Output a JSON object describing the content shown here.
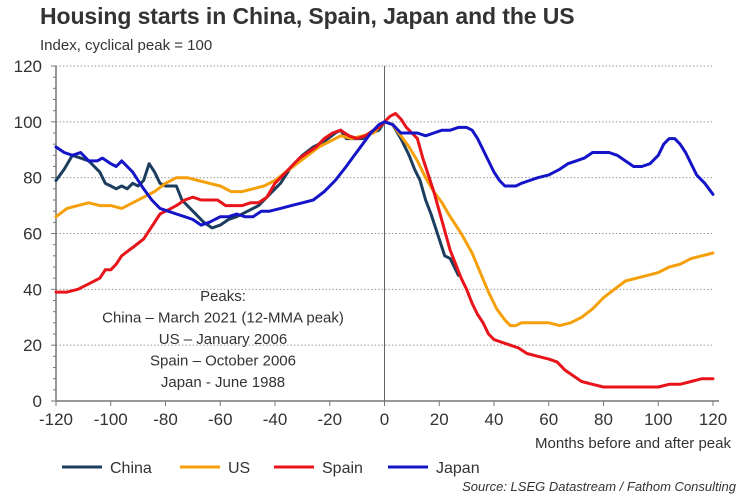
{
  "header": {
    "title": "Housing starts in China, Spain, Japan and the US",
    "subtitle": "Index, cyclical peak = 100"
  },
  "footer": {
    "source": "Source: LSEG Datastream / Fathom Consulting"
  },
  "chart_data": {
    "type": "line",
    "title": "Housing starts in China, Spain, Japan and the US",
    "subtitle": "Index, cyclical peak = 100",
    "xlabel": "Months before and after peak",
    "ylabel": "",
    "xlim": [
      -120,
      120
    ],
    "ylim": [
      0,
      120
    ],
    "x_ticks": [
      -120,
      -100,
      -80,
      -60,
      -40,
      -20,
      0,
      20,
      40,
      60,
      80,
      100,
      120
    ],
    "x_tick_labels": [
      "-120",
      "-100",
      "-80",
      "-60",
      "-40",
      "-20",
      "0",
      "20",
      "40",
      "60",
      "80",
      "100",
      "120"
    ],
    "y_ticks": [
      0,
      20,
      40,
      60,
      80,
      100,
      120
    ],
    "y_tick_labels": [
      "0",
      "20",
      "40",
      "60",
      "80",
      "100",
      "120"
    ],
    "grid": "horizontal dotted",
    "reference_line_x": 0,
    "legend": {
      "placement": "bottom",
      "entries": [
        "China",
        "US",
        "Spain",
        "Japan"
      ]
    },
    "annotation": {
      "lines": [
        "Peaks:",
        "China – March 2021 (12-MMA peak)",
        "US – January 2006",
        "Spain – October 2006",
        "Japan - June 1988"
      ]
    },
    "series": [
      {
        "name": "China",
        "color": "#1b3d5e",
        "points": [
          [
            -120,
            79
          ],
          [
            -117,
            83
          ],
          [
            -114,
            88
          ],
          [
            -111,
            87
          ],
          [
            -108,
            86
          ],
          [
            -106,
            84
          ],
          [
            -104,
            82
          ],
          [
            -102,
            78
          ],
          [
            -100,
            77
          ],
          [
            -98,
            76
          ],
          [
            -96,
            77
          ],
          [
            -94,
            76
          ],
          [
            -92,
            78
          ],
          [
            -90,
            77
          ],
          [
            -88,
            79
          ],
          [
            -86,
            85
          ],
          [
            -84,
            82
          ],
          [
            -82,
            78
          ],
          [
            -80,
            77
          ],
          [
            -78,
            77
          ],
          [
            -76,
            77
          ],
          [
            -74,
            72
          ],
          [
            -70,
            68
          ],
          [
            -66,
            64
          ],
          [
            -63,
            62
          ],
          [
            -60,
            63
          ],
          [
            -57,
            65
          ],
          [
            -54,
            66
          ],
          [
            -50,
            68
          ],
          [
            -46,
            70
          ],
          [
            -42,
            74
          ],
          [
            -38,
            78
          ],
          [
            -34,
            84
          ],
          [
            -30,
            88
          ],
          [
            -26,
            91
          ],
          [
            -22,
            93
          ],
          [
            -18,
            96
          ],
          [
            -16,
            97
          ],
          [
            -14,
            94
          ],
          [
            -11,
            94
          ],
          [
            -8,
            94
          ],
          [
            -5,
            96
          ],
          [
            -2,
            97
          ],
          [
            0,
            100
          ],
          [
            3,
            99
          ],
          [
            6,
            94
          ],
          [
            9,
            88
          ],
          [
            11,
            83
          ],
          [
            13,
            79
          ],
          [
            15,
            72
          ],
          [
            17,
            67
          ],
          [
            19,
            61
          ],
          [
            21,
            55
          ],
          [
            22,
            52
          ],
          [
            24,
            51
          ],
          [
            26,
            47
          ],
          [
            27,
            45
          ]
        ]
      },
      {
        "name": "US",
        "color": "#f5a00a",
        "points": [
          [
            -120,
            66
          ],
          [
            -116,
            69
          ],
          [
            -112,
            70
          ],
          [
            -108,
            71
          ],
          [
            -104,
            70
          ],
          [
            -100,
            70
          ],
          [
            -96,
            69
          ],
          [
            -92,
            71
          ],
          [
            -88,
            73
          ],
          [
            -84,
            75
          ],
          [
            -80,
            78
          ],
          [
            -76,
            80
          ],
          [
            -72,
            80
          ],
          [
            -68,
            79
          ],
          [
            -64,
            78
          ],
          [
            -60,
            77
          ],
          [
            -56,
            75
          ],
          [
            -52,
            75
          ],
          [
            -48,
            76
          ],
          [
            -44,
            77
          ],
          [
            -40,
            79
          ],
          [
            -36,
            82
          ],
          [
            -32,
            85
          ],
          [
            -28,
            88
          ],
          [
            -24,
            91
          ],
          [
            -20,
            93
          ],
          [
            -16,
            95
          ],
          [
            -12,
            94
          ],
          [
            -8,
            95
          ],
          [
            -4,
            96
          ],
          [
            0,
            100
          ],
          [
            3,
            99
          ],
          [
            6,
            95
          ],
          [
            9,
            91
          ],
          [
            12,
            86
          ],
          [
            15,
            80
          ],
          [
            18,
            75
          ],
          [
            21,
            71
          ],
          [
            24,
            66
          ],
          [
            28,
            60
          ],
          [
            32,
            53
          ],
          [
            35,
            46
          ],
          [
            38,
            39
          ],
          [
            41,
            33
          ],
          [
            44,
            29
          ],
          [
            46,
            27
          ],
          [
            48,
            27
          ],
          [
            50,
            28
          ],
          [
            53,
            28
          ],
          [
            56,
            28
          ],
          [
            60,
            28
          ],
          [
            64,
            27
          ],
          [
            68,
            28
          ],
          [
            72,
            30
          ],
          [
            76,
            33
          ],
          [
            80,
            37
          ],
          [
            84,
            40
          ],
          [
            88,
            43
          ],
          [
            92,
            44
          ],
          [
            96,
            45
          ],
          [
            100,
            46
          ],
          [
            104,
            48
          ],
          [
            108,
            49
          ],
          [
            112,
            51
          ],
          [
            116,
            52
          ],
          [
            120,
            53
          ]
        ]
      },
      {
        "name": "Spain",
        "color": "#e8141b",
        "points": [
          [
            -120,
            39
          ],
          [
            -116,
            39
          ],
          [
            -112,
            40
          ],
          [
            -108,
            42
          ],
          [
            -104,
            44
          ],
          [
            -102,
            47
          ],
          [
            -100,
            47
          ],
          [
            -98,
            49
          ],
          [
            -96,
            52
          ],
          [
            -92,
            55
          ],
          [
            -88,
            58
          ],
          [
            -86,
            61
          ],
          [
            -84,
            64
          ],
          [
            -82,
            67
          ],
          [
            -80,
            68
          ],
          [
            -78,
            69
          ],
          [
            -76,
            70
          ],
          [
            -73,
            72
          ],
          [
            -70,
            73
          ],
          [
            -67,
            72
          ],
          [
            -64,
            72
          ],
          [
            -61,
            72
          ],
          [
            -58,
            70
          ],
          [
            -55,
            70
          ],
          [
            -52,
            70
          ],
          [
            -49,
            71
          ],
          [
            -46,
            71
          ],
          [
            -43,
            73
          ],
          [
            -40,
            78
          ],
          [
            -37,
            81
          ],
          [
            -34,
            84
          ],
          [
            -31,
            87
          ],
          [
            -28,
            89
          ],
          [
            -25,
            91
          ],
          [
            -22,
            94
          ],
          [
            -19,
            96
          ],
          [
            -16,
            97
          ],
          [
            -13,
            95
          ],
          [
            -10,
            94
          ],
          [
            -7,
            95
          ],
          [
            -4,
            97
          ],
          [
            -2,
            98
          ],
          [
            0,
            100
          ],
          [
            2,
            102
          ],
          [
            4,
            103
          ],
          [
            6,
            101
          ],
          [
            8,
            98
          ],
          [
            10,
            96
          ],
          [
            12,
            94
          ],
          [
            14,
            87
          ],
          [
            16,
            81
          ],
          [
            18,
            75
          ],
          [
            20,
            68
          ],
          [
            22,
            61
          ],
          [
            24,
            54
          ],
          [
            26,
            49
          ],
          [
            28,
            44
          ],
          [
            30,
            40
          ],
          [
            32,
            35
          ],
          [
            34,
            31
          ],
          [
            36,
            28
          ],
          [
            38,
            24
          ],
          [
            40,
            22
          ],
          [
            43,
            21
          ],
          [
            46,
            20
          ],
          [
            49,
            19
          ],
          [
            52,
            17
          ],
          [
            56,
            16
          ],
          [
            60,
            15
          ],
          [
            63,
            14
          ],
          [
            66,
            11
          ],
          [
            69,
            9
          ],
          [
            72,
            7
          ],
          [
            76,
            6
          ],
          [
            80,
            5
          ],
          [
            84,
            5
          ],
          [
            88,
            5
          ],
          [
            92,
            5
          ],
          [
            96,
            5
          ],
          [
            100,
            5
          ],
          [
            104,
            6
          ],
          [
            108,
            6
          ],
          [
            112,
            7
          ],
          [
            116,
            8
          ],
          [
            120,
            8
          ]
        ]
      },
      {
        "name": "Japan",
        "color": "#1414c8",
        "points": [
          [
            -120,
            91
          ],
          [
            -117,
            89
          ],
          [
            -114,
            88
          ],
          [
            -111,
            89
          ],
          [
            -108,
            86
          ],
          [
            -105,
            86
          ],
          [
            -103,
            87
          ],
          [
            -100,
            85
          ],
          [
            -98,
            84
          ],
          [
            -96,
            86
          ],
          [
            -94,
            84
          ],
          [
            -92,
            82
          ],
          [
            -90,
            79
          ],
          [
            -88,
            76
          ],
          [
            -85,
            72
          ],
          [
            -82,
            69
          ],
          [
            -79,
            68
          ],
          [
            -76,
            67
          ],
          [
            -73,
            66
          ],
          [
            -70,
            65
          ],
          [
            -67,
            63
          ],
          [
            -64,
            64
          ],
          [
            -60,
            66
          ],
          [
            -57,
            66
          ],
          [
            -54,
            67
          ],
          [
            -51,
            66
          ],
          [
            -48,
            66
          ],
          [
            -45,
            68
          ],
          [
            -42,
            68
          ],
          [
            -38,
            69
          ],
          [
            -34,
            70
          ],
          [
            -30,
            71
          ],
          [
            -26,
            72
          ],
          [
            -22,
            75
          ],
          [
            -18,
            79
          ],
          [
            -14,
            84
          ],
          [
            -11,
            88
          ],
          [
            -8,
            92
          ],
          [
            -5,
            96
          ],
          [
            -2,
            99
          ],
          [
            0,
            100
          ],
          [
            3,
            99
          ],
          [
            6,
            96
          ],
          [
            9,
            96
          ],
          [
            12,
            96
          ],
          [
            15,
            95
          ],
          [
            18,
            96
          ],
          [
            21,
            97
          ],
          [
            24,
            97
          ],
          [
            27,
            98
          ],
          [
            30,
            98
          ],
          [
            32,
            97
          ],
          [
            34,
            94
          ],
          [
            36,
            90
          ],
          [
            38,
            86
          ],
          [
            40,
            82
          ],
          [
            42,
            79
          ],
          [
            44,
            77
          ],
          [
            46,
            77
          ],
          [
            48,
            77
          ],
          [
            50,
            78
          ],
          [
            53,
            79
          ],
          [
            56,
            80
          ],
          [
            60,
            81
          ],
          [
            64,
            83
          ],
          [
            67,
            85
          ],
          [
            70,
            86
          ],
          [
            73,
            87
          ],
          [
            76,
            89
          ],
          [
            79,
            89
          ],
          [
            82,
            89
          ],
          [
            85,
            88
          ],
          [
            88,
            86
          ],
          [
            91,
            84
          ],
          [
            94,
            84
          ],
          [
            97,
            85
          ],
          [
            100,
            88
          ],
          [
            102,
            92
          ],
          [
            104,
            94
          ],
          [
            106,
            94
          ],
          [
            108,
            92
          ],
          [
            110,
            89
          ],
          [
            112,
            85
          ],
          [
            114,
            81
          ],
          [
            117,
            78
          ],
          [
            120,
            74
          ]
        ]
      }
    ]
  }
}
